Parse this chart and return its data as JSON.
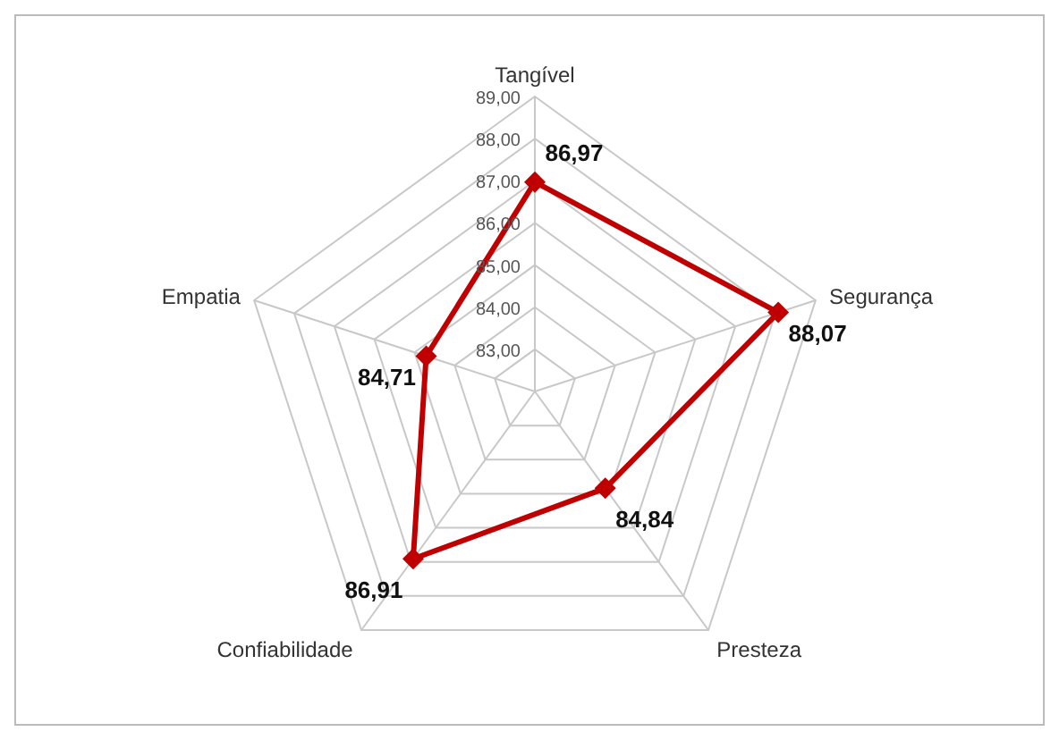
{
  "chart_data": {
    "type": "radar",
    "categories": [
      "Tangível",
      "Segurança",
      "Presteza",
      "Confiabilidade",
      "Empatia"
    ],
    "series": [
      {
        "color": "#c00000",
        "values": [
          86.97,
          88.07,
          84.84,
          86.91,
          84.71
        ],
        "value_labels": [
          "86,97",
          "88,07",
          "84,84",
          "86,91",
          "84,71"
        ]
      }
    ],
    "ylim": [
      82,
      89
    ],
    "yticks": [
      {
        "value": 83,
        "label": "83,00"
      },
      {
        "value": 84,
        "label": "84,00"
      },
      {
        "value": 85,
        "label": "85,00"
      },
      {
        "value": 86,
        "label": "86,00"
      },
      {
        "value": 87,
        "label": "87,00"
      },
      {
        "value": 88,
        "label": "88,00"
      },
      {
        "value": 89,
        "label": "89,00"
      }
    ],
    "grid": true,
    "marker": "diamond",
    "legend": false
  }
}
